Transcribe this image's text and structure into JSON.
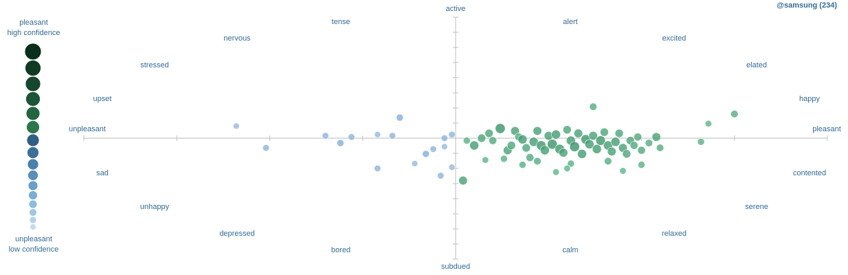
{
  "header": {
    "account_label": "@samsung (234)"
  },
  "legend": {
    "top_line1": "pleasant",
    "top_line2": "high confidence",
    "bottom_line1": "unpleasant",
    "bottom_line2": "low confidence",
    "colors": [
      "#0b2f1d",
      "#0f3a24",
      "#14472d",
      "#1b5536",
      "#226640",
      "#2b774a",
      "#2f5f85",
      "#3a6f9a",
      "#4781ad",
      "#5690bd",
      "#67a0ca",
      "#79afd6",
      "#8bbde0",
      "#9dc9e7",
      "#afd3ec",
      "#c0dcef"
    ]
  },
  "colors": {
    "pleasant_dark": "#0f6b3e",
    "pleasant_light": "#6cc59a",
    "unpleasant_dark": "#2b6aa8",
    "unpleasant_light": "#a9cbea",
    "label": "#336b96",
    "axis": "#c8c8c8"
  },
  "labels": {
    "active": "active",
    "subdued": "subdued",
    "pleasant": "pleasant",
    "unpleasant": "unpleasant",
    "tense": "tense",
    "nervous": "nervous",
    "stressed": "stressed",
    "upset": "upset",
    "sad": "sad",
    "unhappy": "unhappy",
    "depressed": "depressed",
    "bored": "bored",
    "alert": "alert",
    "excited": "excited",
    "elated": "elated",
    "happy": "happy",
    "contented": "contented",
    "serene": "serene",
    "relaxed": "relaxed",
    "calm": "calm"
  },
  "chart_data": {
    "type": "scatter",
    "title": "",
    "xlabel": "",
    "ylabel": "",
    "xlim": [
      -1,
      1
    ],
    "ylim": [
      -1,
      1
    ],
    "grid": false,
    "points": [
      {
        "x": -0.59,
        "y": 0.1,
        "s": 0.25
      },
      {
        "x": -0.51,
        "y": -0.08,
        "s": 0.3
      },
      {
        "x": -0.35,
        "y": 0.02,
        "s": 0.3
      },
      {
        "x": -0.31,
        "y": -0.04,
        "s": 0.35
      },
      {
        "x": -0.28,
        "y": 0.01,
        "s": 0.3
      },
      {
        "x": -0.21,
        "y": -0.25,
        "s": 0.3
      },
      {
        "x": -0.21,
        "y": 0.03,
        "s": 0.25
      },
      {
        "x": -0.17,
        "y": 0.02,
        "s": 0.3
      },
      {
        "x": -0.15,
        "y": 0.17,
        "s": 0.35
      },
      {
        "x": -0.11,
        "y": -0.21,
        "s": 0.25
      },
      {
        "x": -0.08,
        "y": -0.13,
        "s": 0.35
      },
      {
        "x": -0.06,
        "y": -0.09,
        "s": 0.3
      },
      {
        "x": -0.04,
        "y": -0.31,
        "s": 0.3
      },
      {
        "x": -0.03,
        "y": -0.07,
        "s": 0.25
      },
      {
        "x": -0.03,
        "y": 0.0,
        "s": 0.3
      },
      {
        "x": -0.01,
        "y": 0.03,
        "s": 0.3
      },
      {
        "x": -0.01,
        "y": -0.24,
        "s": 0.25
      },
      {
        "x": 0.37,
        "y": 0.26,
        "s": 0.4
      },
      {
        "x": 0.66,
        "y": -0.03,
        "s": 0.35
      },
      {
        "x": 0.68,
        "y": 0.12,
        "s": 0.3
      },
      {
        "x": 0.75,
        "y": 0.2,
        "s": 0.4
      },
      {
        "x": 0.02,
        "y": -0.35,
        "s": 0.55
      },
      {
        "x": 0.03,
        "y": -0.02,
        "s": 0.35
      },
      {
        "x": 0.05,
        "y": -0.06,
        "s": 0.6
      },
      {
        "x": 0.07,
        "y": 0.0,
        "s": 0.5
      },
      {
        "x": 0.09,
        "y": 0.04,
        "s": 0.5
      },
      {
        "x": 0.1,
        "y": -0.02,
        "s": 0.45
      },
      {
        "x": 0.12,
        "y": 0.08,
        "s": 0.7
      },
      {
        "x": 0.14,
        "y": -0.1,
        "s": 0.55
      },
      {
        "x": 0.15,
        "y": -0.06,
        "s": 0.5
      },
      {
        "x": 0.16,
        "y": 0.06,
        "s": 0.55
      },
      {
        "x": 0.17,
        "y": 0.01,
        "s": 0.45
      },
      {
        "x": 0.18,
        "y": -0.01,
        "s": 0.6
      },
      {
        "x": 0.19,
        "y": -0.08,
        "s": 0.5
      },
      {
        "x": 0.2,
        "y": -0.16,
        "s": 0.45
      },
      {
        "x": 0.21,
        "y": -0.03,
        "s": 0.6
      },
      {
        "x": 0.22,
        "y": 0.06,
        "s": 0.55
      },
      {
        "x": 0.23,
        "y": -0.06,
        "s": 0.65
      },
      {
        "x": 0.24,
        "y": -0.1,
        "s": 0.6
      },
      {
        "x": 0.25,
        "y": 0.02,
        "s": 0.55
      },
      {
        "x": 0.26,
        "y": -0.05,
        "s": 0.7
      },
      {
        "x": 0.27,
        "y": 0.03,
        "s": 0.6
      },
      {
        "x": 0.28,
        "y": -0.09,
        "s": 0.65
      },
      {
        "x": 0.29,
        "y": -0.12,
        "s": 0.55
      },
      {
        "x": 0.3,
        "y": 0.07,
        "s": 0.5
      },
      {
        "x": 0.31,
        "y": -0.02,
        "s": 0.6
      },
      {
        "x": 0.32,
        "y": -0.07,
        "s": 0.7
      },
      {
        "x": 0.33,
        "y": 0.04,
        "s": 0.55
      },
      {
        "x": 0.34,
        "y": -0.13,
        "s": 0.6
      },
      {
        "x": 0.35,
        "y": -0.01,
        "s": 0.65
      },
      {
        "x": 0.36,
        "y": -0.05,
        "s": 0.6
      },
      {
        "x": 0.37,
        "y": 0.02,
        "s": 0.55
      },
      {
        "x": 0.38,
        "y": -0.09,
        "s": 0.6
      },
      {
        "x": 0.39,
        "y": -0.02,
        "s": 0.65
      },
      {
        "x": 0.4,
        "y": 0.05,
        "s": 0.5
      },
      {
        "x": 0.41,
        "y": -0.06,
        "s": 0.6
      },
      {
        "x": 0.42,
        "y": -0.11,
        "s": 0.55
      },
      {
        "x": 0.43,
        "y": -0.03,
        "s": 0.6
      },
      {
        "x": 0.44,
        "y": 0.04,
        "s": 0.5
      },
      {
        "x": 0.45,
        "y": -0.08,
        "s": 0.55
      },
      {
        "x": 0.46,
        "y": -0.13,
        "s": 0.5
      },
      {
        "x": 0.47,
        "y": -0.02,
        "s": 0.5
      },
      {
        "x": 0.48,
        "y": -0.06,
        "s": 0.45
      },
      {
        "x": 0.49,
        "y": 0.01,
        "s": 0.45
      },
      {
        "x": 0.5,
        "y": -0.1,
        "s": 0.45
      },
      {
        "x": 0.52,
        "y": -0.04,
        "s": 0.4
      },
      {
        "x": 0.54,
        "y": 0.01,
        "s": 0.55
      },
      {
        "x": 0.55,
        "y": -0.08,
        "s": 0.4
      },
      {
        "x": 0.5,
        "y": -0.22,
        "s": 0.35
      },
      {
        "x": 0.41,
        "y": -0.19,
        "s": 0.4
      },
      {
        "x": 0.31,
        "y": -0.21,
        "s": 0.35
      },
      {
        "x": 0.27,
        "y": -0.28,
        "s": 0.3
      },
      {
        "x": 0.22,
        "y": -0.19,
        "s": 0.4
      },
      {
        "x": 0.18,
        "y": -0.22,
        "s": 0.35
      },
      {
        "x": 0.13,
        "y": -0.17,
        "s": 0.35
      },
      {
        "x": 0.08,
        "y": -0.18,
        "s": 0.3
      },
      {
        "x": 0.3,
        "y": -0.25,
        "s": 0.3
      },
      {
        "x": 0.45,
        "y": -0.27,
        "s": 0.3
      }
    ]
  }
}
